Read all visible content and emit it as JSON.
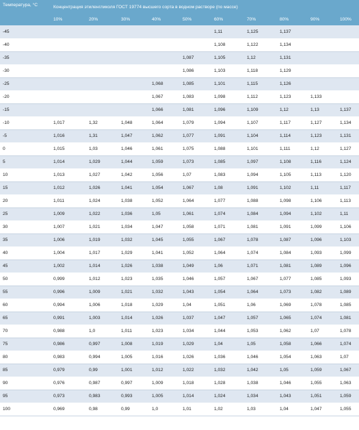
{
  "header": {
    "temp_label": "Температура, °C",
    "concentration_label": "Концентрация этиленгликоля ГОСТ 19774 высшего сорта в водном растворе (по массе)",
    "columns": [
      "10%",
      "20%",
      "30%",
      "40%",
      "50%",
      "60%",
      "70%",
      "80%",
      "90%",
      "100%"
    ]
  },
  "rows": [
    {
      "t": "-45",
      "v": [
        "",
        "",
        "",
        "",
        "",
        "1,11",
        "1,125",
        "1,137",
        "",
        ""
      ]
    },
    {
      "t": "-40",
      "v": [
        "",
        "",
        "",
        "",
        "",
        "1,108",
        "1,122",
        "1,134",
        "",
        ""
      ]
    },
    {
      "t": "-35",
      "v": [
        "",
        "",
        "",
        "",
        "1,087",
        "1,105",
        "1,12",
        "1,131",
        "",
        ""
      ]
    },
    {
      "t": "-30",
      "v": [
        "",
        "",
        "",
        "",
        "1,086",
        "1,103",
        "1,118",
        "1,129",
        "",
        ""
      ]
    },
    {
      "t": "-25",
      "v": [
        "",
        "",
        "",
        "1,068",
        "1,085",
        "1,101",
        "1,115",
        "1,126",
        "",
        ""
      ]
    },
    {
      "t": "-20",
      "v": [
        "",
        "",
        "",
        "1,067",
        "1,083",
        "1,098",
        "1,112",
        "1,123",
        "1,133",
        ""
      ]
    },
    {
      "t": "-15",
      "v": [
        "",
        "",
        "",
        "1,066",
        "1,081",
        "1,096",
        "1,109",
        "1,12",
        "1,13",
        "1,137"
      ]
    },
    {
      "t": "-10",
      "v": [
        "1,017",
        "1,32",
        "1,048",
        "1,064",
        "1,079",
        "1,094",
        "1,107",
        "1,117",
        "1,127",
        "1,134"
      ]
    },
    {
      "t": "-5",
      "v": [
        "1,016",
        "1,31",
        "1,047",
        "1,062",
        "1,077",
        "1,091",
        "1,104",
        "1,114",
        "1,123",
        "1,131"
      ]
    },
    {
      "t": "0",
      "v": [
        "1,015",
        "1,03",
        "1,046",
        "1,061",
        "1,075",
        "1,088",
        "1,101",
        "1,111",
        "1,12",
        "1,127"
      ]
    },
    {
      "t": "5",
      "v": [
        "1,014",
        "1,029",
        "1,044",
        "1,059",
        "1,073",
        "1,085",
        "1,097",
        "1,108",
        "1,116",
        "1,124"
      ]
    },
    {
      "t": "10",
      "v": [
        "1,013",
        "1,027",
        "1,042",
        "1,056",
        "1,07",
        "1,083",
        "1,094",
        "1,105",
        "1,113",
        "1,120"
      ]
    },
    {
      "t": "15",
      "v": [
        "1,012",
        "1,026",
        "1,041",
        "1,054",
        "1,067",
        "1,08",
        "1,091",
        "1,102",
        "1,11",
        "1,117"
      ]
    },
    {
      "t": "20",
      "v": [
        "1,011",
        "1,024",
        "1,038",
        "1,052",
        "1,064",
        "1,077",
        "1,088",
        "1,098",
        "1,106",
        "1,113"
      ]
    },
    {
      "t": "25",
      "v": [
        "1,009",
        "1,022",
        "1,036",
        "1,05",
        "1,061",
        "1,074",
        "1,084",
        "1,094",
        "1,102",
        "1,11"
      ]
    },
    {
      "t": "30",
      "v": [
        "1,007",
        "1,021",
        "1,034",
        "1,047",
        "1,058",
        "1,071",
        "1,081",
        "1,091",
        "1,099",
        "1,106"
      ]
    },
    {
      "t": "35",
      "v": [
        "1,006",
        "1,019",
        "1,032",
        "1,045",
        "1,055",
        "1,067",
        "1,078",
        "1,087",
        "1,096",
        "1,103"
      ]
    },
    {
      "t": "40",
      "v": [
        "1,004",
        "1,017",
        "1,029",
        "1,041",
        "1,052",
        "1,064",
        "1,074",
        "1,084",
        "1,093",
        "1,099"
      ]
    },
    {
      "t": "45",
      "v": [
        "1,002",
        "1,014",
        "1,026",
        "1,038",
        "1,049",
        "1,06",
        "1,071",
        "1,081",
        "1,089",
        "1,096"
      ]
    },
    {
      "t": "50",
      "v": [
        "0,999",
        "1,012",
        "1,023",
        "1,035",
        "1,046",
        "1,057",
        "1,067",
        "1,077",
        "1,085",
        "1,093"
      ]
    },
    {
      "t": "55",
      "v": [
        "0,996",
        "1,009",
        "1,021",
        "1,032",
        "1,043",
        "1,054",
        "1,064",
        "1,073",
        "1,082",
        "1,089"
      ]
    },
    {
      "t": "60",
      "v": [
        "0,994",
        "1,006",
        "1,018",
        "1,029",
        "1,04",
        "1,051",
        "1,06",
        "1,069",
        "1,078",
        "1,085"
      ]
    },
    {
      "t": "65",
      "v": [
        "0,991",
        "1,003",
        "1,014",
        "1,026",
        "1,037",
        "1,047",
        "1,057",
        "1,065",
        "1,074",
        "1,081"
      ]
    },
    {
      "t": "70",
      "v": [
        "0,988",
        "1,0",
        "1,011",
        "1,023",
        "1,034",
        "1,044",
        "1,053",
        "1,062",
        "1,07",
        "1,078"
      ]
    },
    {
      "t": "75",
      "v": [
        "0,986",
        "0,997",
        "1,008",
        "1,019",
        "1,029",
        "1,04",
        "1,05",
        "1,058",
        "1,066",
        "1,074"
      ]
    },
    {
      "t": "80",
      "v": [
        "0,983",
        "0,994",
        "1,005",
        "1,016",
        "1,026",
        "1,036",
        "1,046",
        "1,054",
        "1,063",
        "1,07"
      ]
    },
    {
      "t": "85",
      "v": [
        "0,979",
        "0,99",
        "1,001",
        "1,012",
        "1,022",
        "1,032",
        "1,042",
        "1,05",
        "1,059",
        "1,067"
      ]
    },
    {
      "t": "90",
      "v": [
        "0,976",
        "0,987",
        "0,997",
        "1,009",
        "1,018",
        "1,028",
        "1,038",
        "1,046",
        "1,055",
        "1,063"
      ]
    },
    {
      "t": "95",
      "v": [
        "0,973",
        "0,983",
        "0,993",
        "1,005",
        "1,014",
        "1,024",
        "1,034",
        "1,043",
        "1,051",
        "1,059"
      ]
    },
    {
      "t": "100",
      "v": [
        "0,969",
        "0,98",
        "0,99",
        "1,0",
        "1,01",
        "1,02",
        "1,03",
        "1,04",
        "1,047",
        "1,055"
      ]
    }
  ]
}
